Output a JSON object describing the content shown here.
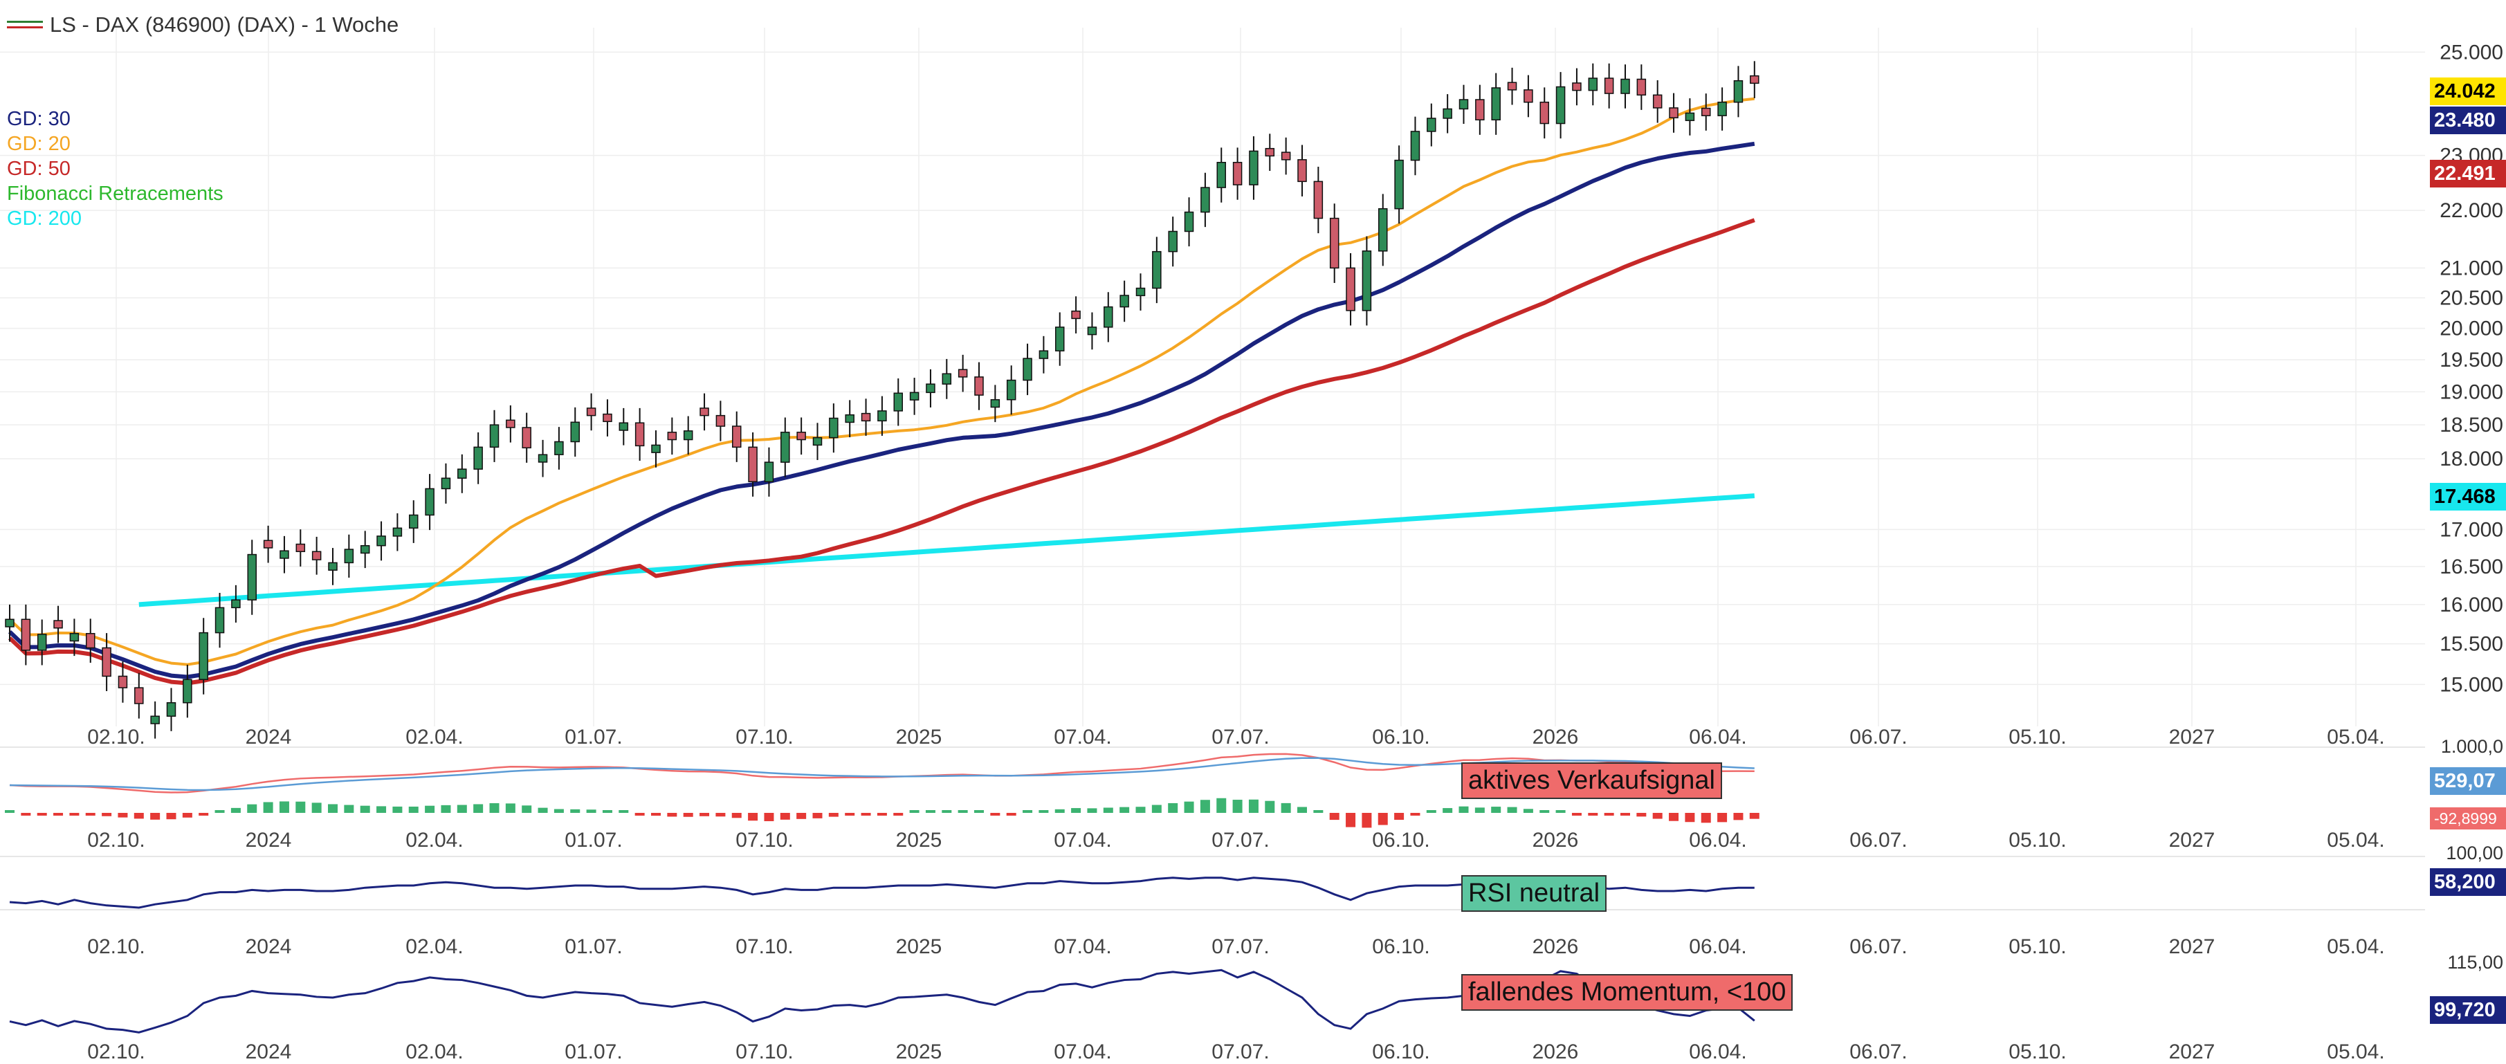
{
  "header": {
    "title": "LS - DAX (846900) (DAX) - 1 Woche"
  },
  "legend": [
    {
      "label": "GD: 30",
      "color": "#1a237e"
    },
    {
      "label": "GD: 20",
      "color": "#f5a623"
    },
    {
      "label": "GD: 50",
      "color": "#c62828"
    },
    {
      "label": "Fibonacci Retracements",
      "color": "#2db82d"
    },
    {
      "label": "GD: 200",
      "color": "#18e7ee"
    }
  ],
  "colors": {
    "up_candle": "#2e8b57",
    "down_candle": "#cd5c6a",
    "grid": "#eeeeee",
    "macd_line": "#ef6b6b",
    "signal_line": "#5b9bd5",
    "hist_pos": "#3cb371",
    "hist_neg": "#e53935",
    "rsi_line": "#1a237e",
    "momentum_line": "#1a237e"
  },
  "chart_data": [
    {
      "type": "candlestick",
      "title": "LS - DAX (846900) (DAX) - 1 Woche",
      "y_scale": "log",
      "ylim": [
        14500,
        25500
      ],
      "y_ticks": [
        "25.000",
        "23.000",
        "22.000",
        "21.000",
        "20.500",
        "20.000",
        "19.500",
        "19.000",
        "18.500",
        "18.000",
        "17.000",
        "16.500",
        "16.000",
        "15.500",
        "15.000"
      ],
      "x_ticks": [
        "02.10.",
        "2024",
        "02.04.",
        "01.07.",
        "07.10.",
        "2025",
        "07.04.",
        "07.07.",
        "06.10.",
        "2026",
        "06.04.",
        "06.07.",
        "05.10.",
        "2027",
        "05.04."
      ],
      "close": [
        15810,
        15420,
        15620,
        15700,
        15630,
        15450,
        15100,
        14960,
        14770,
        14620,
        14780,
        15060,
        15640,
        15960,
        16060,
        16660,
        16750,
        16710,
        16700,
        16590,
        16550,
        16730,
        16780,
        16910,
        17020,
        17200,
        17570,
        17720,
        17850,
        18170,
        18500,
        18460,
        18160,
        18060,
        18250,
        18540,
        18640,
        18550,
        18530,
        18190,
        18200,
        18280,
        18410,
        18640,
        18480,
        18170,
        17670,
        17950,
        18390,
        18280,
        18310,
        18600,
        18650,
        18560,
        18710,
        18980,
        18990,
        19120,
        19280,
        19230,
        18950,
        18880,
        19180,
        19520,
        19640,
        20020,
        20160,
        20020,
        20350,
        20540,
        20660,
        21280,
        21630,
        21970,
        22410,
        22870,
        22460,
        23080,
        22990,
        22920,
        22520,
        21860,
        21000,
        20290,
        21290,
        22030,
        22910,
        23450,
        23700,
        23880,
        24060,
        23670,
        24290,
        24250,
        24010,
        23600,
        24310,
        24240,
        24480,
        24180,
        24460,
        24150,
        23900,
        23710,
        23800,
        23750,
        24010,
        24430,
        24380
      ],
      "candle_pattern": [
        "up",
        "down",
        "up",
        "down",
        "up",
        "down",
        "down",
        "down",
        "down",
        "up",
        "up",
        "up",
        "up",
        "up",
        "up",
        "up",
        "down",
        "up",
        "down",
        "down",
        "up",
        "up",
        "up",
        "up",
        "up",
        "up",
        "up",
        "up",
        "up",
        "up",
        "up",
        "down",
        "down",
        "up",
        "up",
        "up",
        "down",
        "down",
        "up",
        "down",
        "up",
        "down",
        "up",
        "down",
        "down",
        "down",
        "down",
        "up",
        "up",
        "down",
        "up",
        "up",
        "up",
        "down",
        "up",
        "up",
        "up",
        "up",
        "up",
        "down",
        "down",
        "up",
        "up",
        "up",
        "up",
        "up",
        "down",
        "up",
        "up",
        "up",
        "up",
        "up",
        "up",
        "up",
        "up",
        "up",
        "down",
        "up",
        "down",
        "down",
        "down",
        "down",
        "down",
        "down",
        "up",
        "up",
        "up",
        "up",
        "up",
        "up",
        "up",
        "down",
        "up",
        "down",
        "down",
        "down",
        "up",
        "down",
        "up",
        "down",
        "up",
        "down",
        "down",
        "down",
        "up",
        "down",
        "up",
        "up",
        "down"
      ],
      "series": [
        {
          "name": "GD: 20",
          "period": 20,
          "color": "#f5a623"
        },
        {
          "name": "GD: 30",
          "period": 30,
          "color": "#1a237e"
        },
        {
          "name": "GD: 50",
          "period": 50,
          "color": "#c62828"
        },
        {
          "name": "GD: 200",
          "period": 200,
          "color": "#18e7ee",
          "start": 16000,
          "end": 17470
        }
      ],
      "last_values": [
        {
          "label": "24.042",
          "value": 24042,
          "bg": "#ffe400",
          "fg": "#000000"
        },
        {
          "label": "23.480",
          "value": 23480,
          "bg": "#1a237e",
          "fg": "#ffffff"
        },
        {
          "label": "22.491",
          "value": 22491,
          "bg": "#c62828",
          "fg": "#ffffff"
        },
        {
          "label": "17.468",
          "value": 17468,
          "bg": "#18e7ee",
          "fg": "#000000"
        }
      ]
    },
    {
      "type": "line",
      "panel": "MACD",
      "annotation": "aktives Verkaufsignal",
      "last_values": [
        {
          "label": "529,07",
          "bg": "#5b9bd5",
          "fg": "#ffffff"
        },
        {
          "label": "-92,8999",
          "bg": "#ef6b6b",
          "fg": "#ffffff"
        }
      ],
      "axis_label_top": "1.000,0"
    },
    {
      "type": "line",
      "panel": "RSI",
      "annotation": "RSI neutral",
      "axis_label_top": "100,00",
      "last_value": "58,200",
      "values": [
        45,
        44,
        46,
        43,
        47,
        44,
        42,
        41,
        40,
        43,
        45,
        47,
        52,
        54,
        54,
        56,
        55,
        56,
        56,
        55,
        55,
        56,
        58,
        59,
        60,
        60,
        62,
        63,
        62,
        60,
        58,
        58,
        57,
        58,
        59,
        60,
        60,
        59,
        59,
        57,
        57,
        57,
        58,
        59,
        58,
        56,
        52,
        54,
        57,
        56,
        56,
        58,
        58,
        58,
        59,
        60,
        60,
        60,
        61,
        60,
        59,
        58,
        60,
        62,
        62,
        64,
        63,
        62,
        62,
        63,
        64,
        66,
        67,
        66,
        67,
        67,
        65,
        67,
        66,
        65,
        63,
        58,
        52,
        47,
        53,
        56,
        59,
        60,
        60,
        60,
        61,
        59,
        61,
        60,
        58,
        56,
        59,
        58,
        59,
        57,
        58,
        56,
        55,
        55,
        56,
        55,
        57,
        58,
        58
      ]
    },
    {
      "type": "line",
      "panel": "Momentum",
      "annotation": "fallendes Momentum, <100",
      "axis_label_top": "115,00",
      "last_value": "99,720",
      "values": [
        99.5,
        98.5,
        99.8,
        98.2,
        99.6,
        98.8,
        97.5,
        97.2,
        96.5,
        97.8,
        99.2,
        101.0,
        104.5,
        106.0,
        106.5,
        107.8,
        107.2,
        107.0,
        106.8,
        106.2,
        106.0,
        106.8,
        107.2,
        108.5,
        110.0,
        110.5,
        111.5,
        111.0,
        110.8,
        110.0,
        109.0,
        108.0,
        106.5,
        106.0,
        106.8,
        107.5,
        107.2,
        107.0,
        106.5,
        104.5,
        104.0,
        103.5,
        104.2,
        104.8,
        103.8,
        102.0,
        99.5,
        100.8,
        103.0,
        102.5,
        102.8,
        103.8,
        104.0,
        103.5,
        104.5,
        106.0,
        106.2,
        106.5,
        106.8,
        106.0,
        104.8,
        104.0,
        105.8,
        107.5,
        107.8,
        109.5,
        109.8,
        108.8,
        110.0,
        110.8,
        111.0,
        112.5,
        113.0,
        112.5,
        113.0,
        113.5,
        111.5,
        113.0,
        111.0,
        108.5,
        106.0,
        101.5,
        98.5,
        97.5,
        101.5,
        103.0,
        105.0,
        105.5,
        105.8,
        106.0,
        106.5,
        104.5,
        105.5,
        104.8,
        107.0,
        111.0,
        113.2,
        112.5,
        109.5,
        105.5,
        104.5,
        103.8,
        102.5,
        101.5,
        101.0,
        102.5,
        103.0,
        103.2,
        99.7
      ]
    }
  ]
}
